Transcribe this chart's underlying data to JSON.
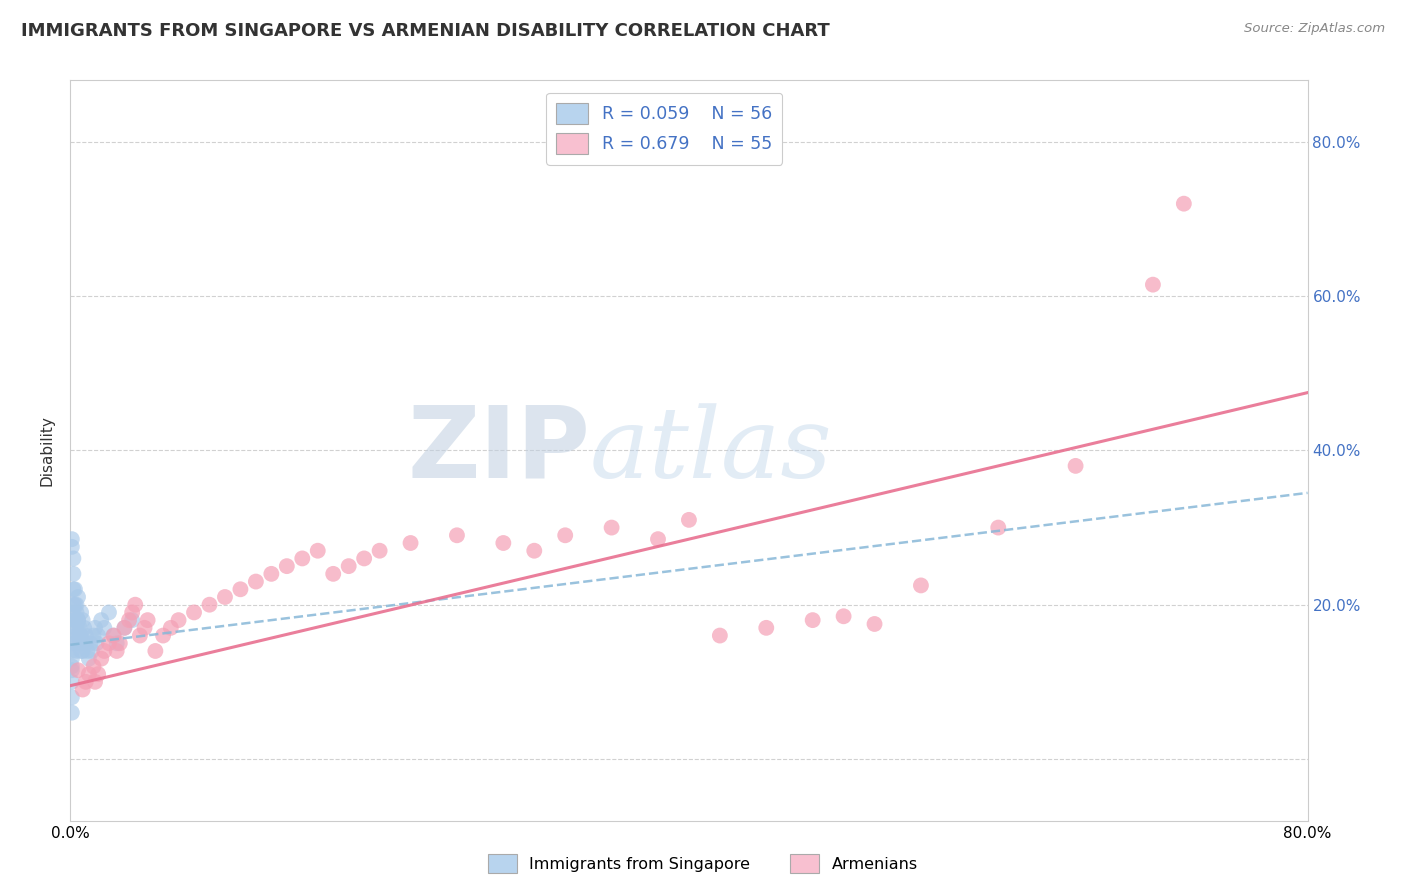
{
  "title": "IMMIGRANTS FROM SINGAPORE VS ARMENIAN DISABILITY CORRELATION CHART",
  "source": "Source: ZipAtlas.com",
  "ylabel": "Disability",
  "xlim": [
    0.0,
    0.8
  ],
  "ylim": [
    -0.08,
    0.88
  ],
  "y_ticks": [
    0.0,
    0.2,
    0.4,
    0.6,
    0.8
  ],
  "legend_r1": "R = 0.059",
  "legend_n1": "N = 56",
  "legend_r2": "R = 0.679",
  "legend_n2": "N = 55",
  "blue_color": "#a8c8e8",
  "pink_color": "#f4a0b5",
  "watermark_zip": "ZIP",
  "watermark_atlas": "atlas",
  "background_color": "#ffffff",
  "grid_color": "#cccccc",
  "blue_line_x": [
    0.0,
    0.8
  ],
  "blue_line_y": [
    0.148,
    0.345
  ],
  "pink_line_x": [
    0.0,
    0.8
  ],
  "pink_line_y": [
    0.095,
    0.475
  ],
  "blue_x": [
    0.001,
    0.001,
    0.001,
    0.001,
    0.001,
    0.001,
    0.001,
    0.001,
    0.002,
    0.002,
    0.002,
    0.002,
    0.002,
    0.003,
    0.003,
    0.003,
    0.003,
    0.004,
    0.004,
    0.004,
    0.005,
    0.005,
    0.005,
    0.006,
    0.006,
    0.007,
    0.007,
    0.008,
    0.008,
    0.009,
    0.01,
    0.01,
    0.011,
    0.012,
    0.013,
    0.014,
    0.015,
    0.016,
    0.017,
    0.018,
    0.02,
    0.022,
    0.025,
    0.028,
    0.03,
    0.035,
    0.04,
    0.001,
    0.001,
    0.002,
    0.002,
    0.003,
    0.004,
    0.005,
    0.006,
    0.007
  ],
  "blue_y": [
    0.115,
    0.12,
    0.13,
    0.14,
    0.15,
    0.1,
    0.08,
    0.06,
    0.18,
    0.2,
    0.22,
    0.19,
    0.17,
    0.16,
    0.18,
    0.2,
    0.15,
    0.14,
    0.17,
    0.19,
    0.21,
    0.18,
    0.16,
    0.15,
    0.17,
    0.19,
    0.16,
    0.14,
    0.18,
    0.17,
    0.16,
    0.15,
    0.14,
    0.13,
    0.15,
    0.14,
    0.16,
    0.17,
    0.15,
    0.16,
    0.18,
    0.17,
    0.19,
    0.16,
    0.15,
    0.17,
    0.18,
    0.275,
    0.285,
    0.26,
    0.24,
    0.22,
    0.2,
    0.18,
    0.16,
    0.14
  ],
  "pink_x": [
    0.005,
    0.008,
    0.01,
    0.012,
    0.015,
    0.016,
    0.018,
    0.02,
    0.022,
    0.025,
    0.028,
    0.03,
    0.032,
    0.035,
    0.038,
    0.04,
    0.042,
    0.045,
    0.048,
    0.05,
    0.055,
    0.06,
    0.065,
    0.07,
    0.08,
    0.09,
    0.1,
    0.11,
    0.12,
    0.13,
    0.14,
    0.15,
    0.16,
    0.17,
    0.18,
    0.19,
    0.2,
    0.22,
    0.25,
    0.28,
    0.3,
    0.32,
    0.35,
    0.38,
    0.4,
    0.42,
    0.45,
    0.48,
    0.5,
    0.52,
    0.55,
    0.6,
    0.65,
    0.7,
    0.72
  ],
  "pink_y": [
    0.115,
    0.09,
    0.1,
    0.11,
    0.12,
    0.1,
    0.11,
    0.13,
    0.14,
    0.15,
    0.16,
    0.14,
    0.15,
    0.17,
    0.18,
    0.19,
    0.2,
    0.16,
    0.17,
    0.18,
    0.14,
    0.16,
    0.17,
    0.18,
    0.19,
    0.2,
    0.21,
    0.22,
    0.23,
    0.24,
    0.25,
    0.26,
    0.27,
    0.24,
    0.25,
    0.26,
    0.27,
    0.28,
    0.29,
    0.28,
    0.27,
    0.29,
    0.3,
    0.285,
    0.31,
    0.16,
    0.17,
    0.18,
    0.185,
    0.175,
    0.225,
    0.3,
    0.38,
    0.615,
    0.72
  ]
}
